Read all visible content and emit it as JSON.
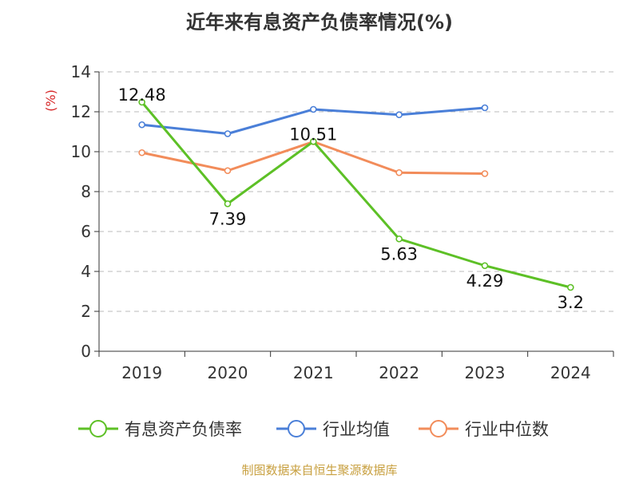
{
  "title": "近年来有息资产负债率情况(%)",
  "source": "制图数据来自恒生聚源数据库",
  "colors": {
    "source_text": "#c8a040",
    "axis": "#333333",
    "grid": "#bbbbbb",
    "ylabel": "#d62728"
  },
  "chart_data": {
    "type": "line",
    "title": "近年来有息资产负债率情况(%)",
    "xlabel": "",
    "ylabel": "(%)",
    "categories": [
      "2019",
      "2020",
      "2021",
      "2022",
      "2023",
      "2024"
    ],
    "ylim": [
      0,
      14
    ],
    "yticks": [
      0,
      2,
      4,
      6,
      8,
      10,
      12,
      14
    ],
    "grid": true,
    "legend_position": "bottom",
    "series": [
      {
        "name": "有息资产负债率",
        "color": "#5dc026",
        "values": [
          12.48,
          7.39,
          10.51,
          5.63,
          4.29,
          3.2
        ],
        "labels": [
          "12.48",
          "7.39",
          "10.51",
          "5.63",
          "4.29",
          "3.2"
        ]
      },
      {
        "name": "行业均值",
        "color": "#4a7fd8",
        "values": [
          11.35,
          10.9,
          12.12,
          11.85,
          12.2,
          null
        ]
      },
      {
        "name": "行业中位数",
        "color": "#f28c5a",
        "values": [
          9.95,
          9.05,
          10.5,
          8.95,
          8.9,
          null
        ]
      }
    ]
  }
}
